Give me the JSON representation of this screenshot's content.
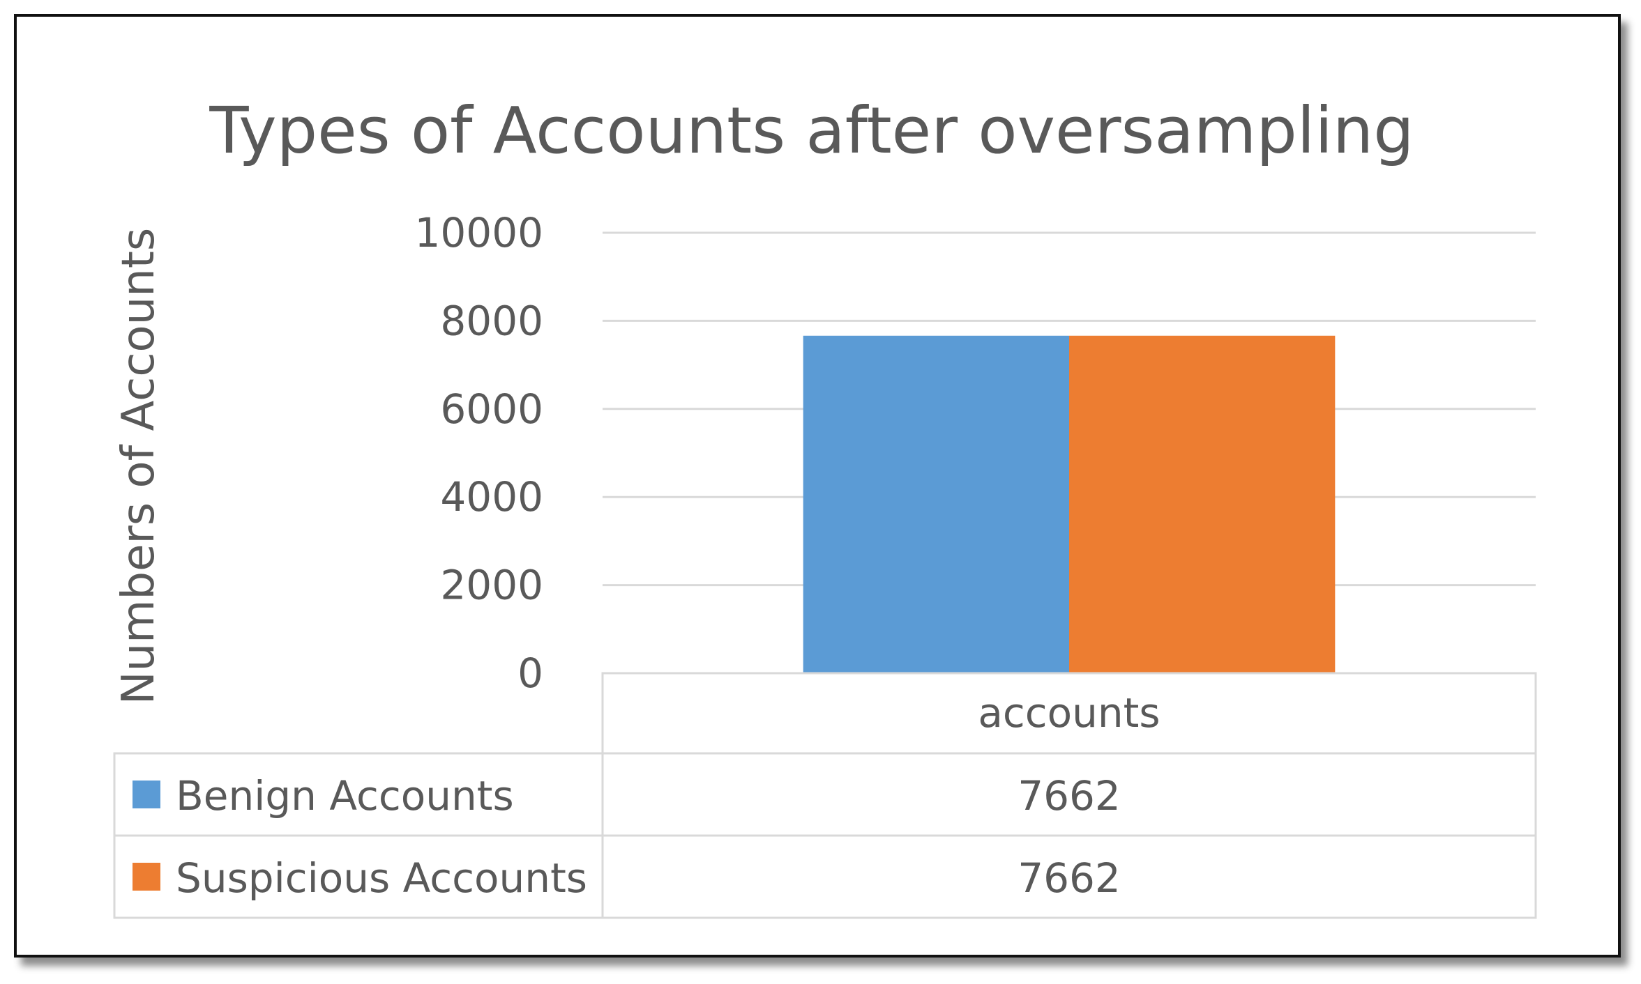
{
  "chart_data": {
    "type": "bar",
    "title": "Types of Accounts after oversampling",
    "xlabel": "",
    "ylabel": "Numbers of Accounts",
    "categories": [
      "accounts"
    ],
    "series": [
      {
        "name": "Benign Accounts",
        "values": [
          7662
        ],
        "color": "#5b9bd5"
      },
      {
        "name": "Suspicious Accounts",
        "values": [
          7662
        ],
        "color": "#ed7d31"
      }
    ],
    "ylim": [
      0,
      10000
    ],
    "yticks": [
      "0",
      "2000",
      "4000",
      "6000",
      "8000",
      "10000"
    ],
    "grid": true,
    "data_table": {
      "rows": [
        {
          "label": "Benign Accounts",
          "value": "7662"
        },
        {
          "label": "Suspicious Accounts",
          "value": "7662"
        }
      ]
    }
  }
}
